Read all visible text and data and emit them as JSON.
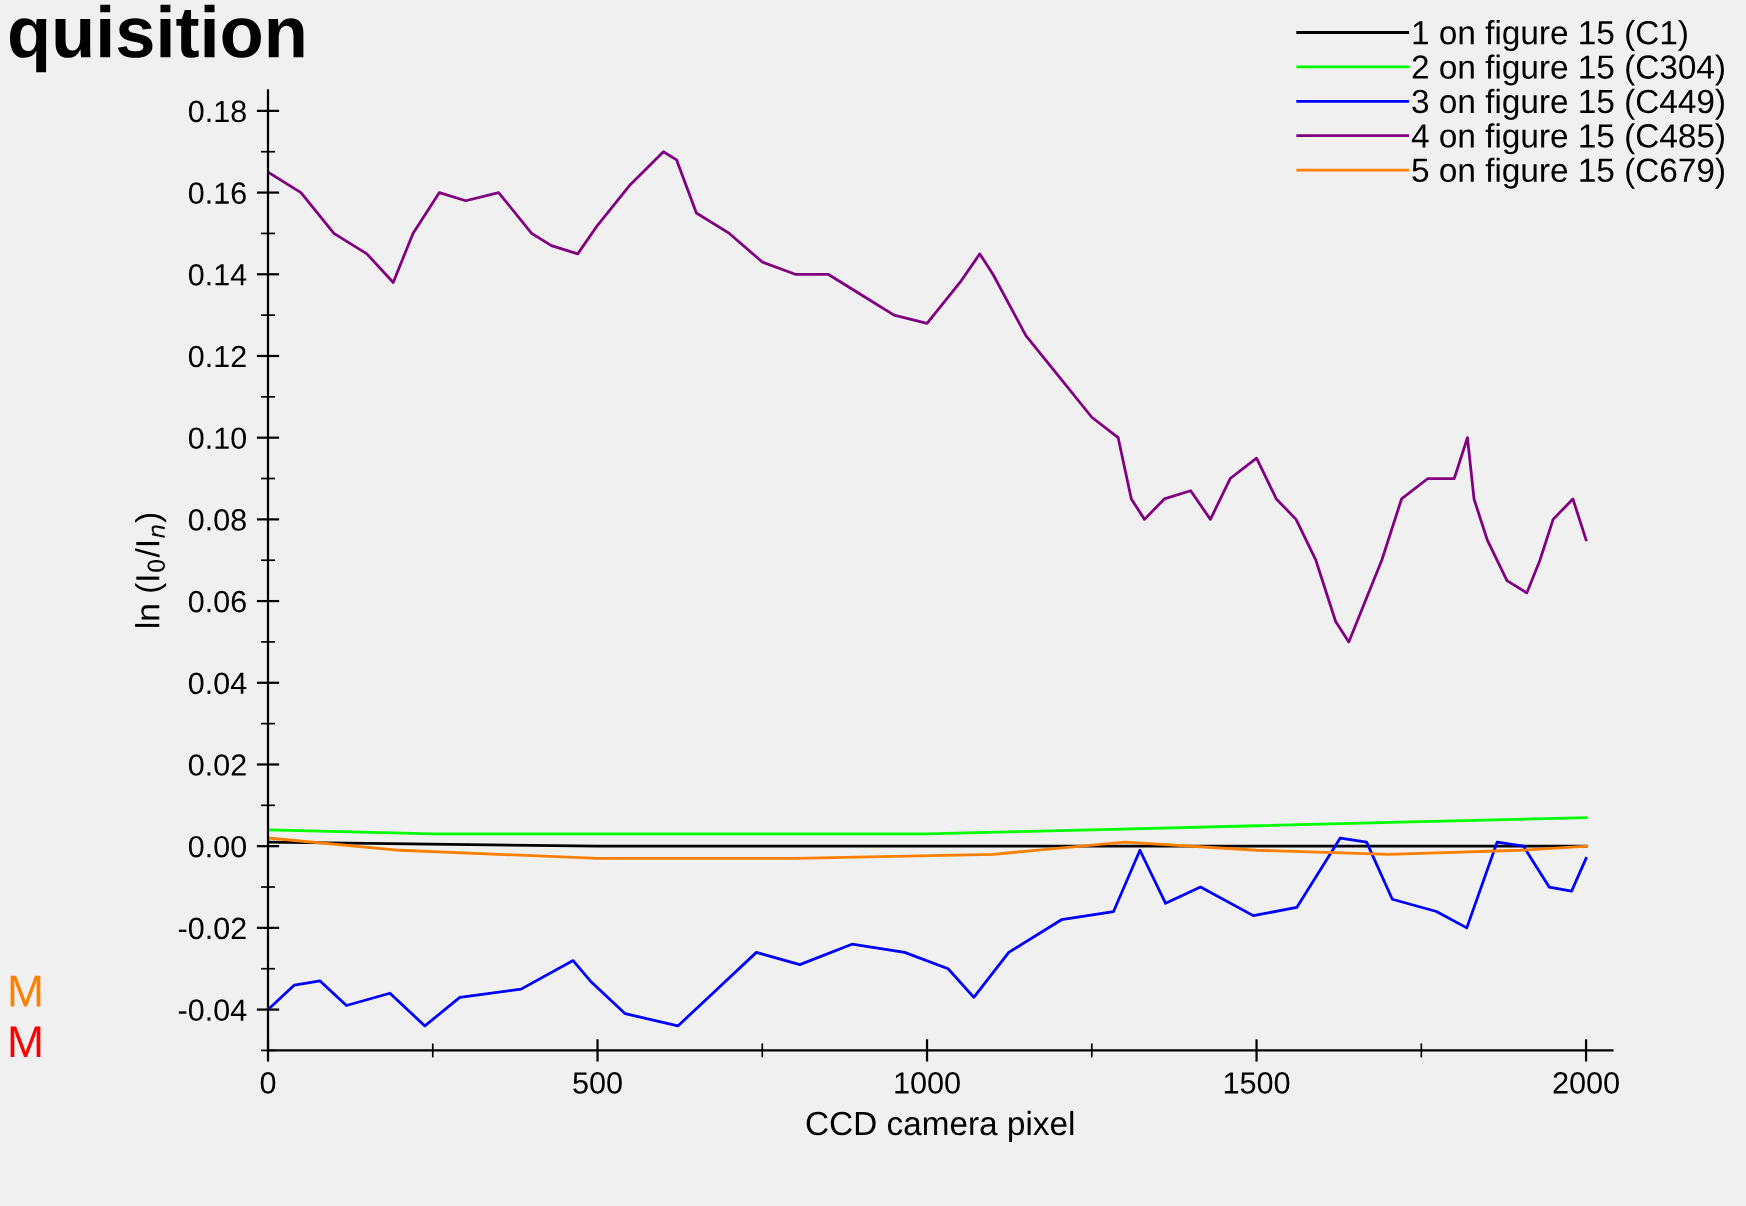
{
  "chart_data": {
    "type": "line",
    "xlabel": "CCD camera pixel",
    "ylabel": "ln (I$_{0}$/I$_{n}$)",
    "annotations": [
      "quisition",
      "M",
      "M"
    ],
    "xlim": [
      0,
      2040
    ],
    "xticks": [
      0,
      500,
      1000,
      1500,
      2000
    ],
    "ylim": [
      -0.05,
      0.185
    ],
    "yticks": [
      {
        "value": -0.04,
        "label": "-0.04"
      },
      {
        "value": -0.02,
        "label": "-0.02"
      },
      {
        "value": 0,
        "label": "0.00"
      },
      {
        "value": 0.02,
        "label": "0.02"
      },
      {
        "value": 0.04,
        "label": "0.04"
      },
      {
        "value": 0.06,
        "label": "0.06"
      },
      {
        "value": 0.08,
        "label": "0.08"
      },
      {
        "value": 0.1,
        "label": "0.10"
      },
      {
        "value": 0.12,
        "label": "0.12"
      },
      {
        "value": 0.14,
        "label": "0.14"
      },
      {
        "value": 0.16,
        "label": "0.16"
      },
      {
        "value": 0.18,
        "label": "0.18"
      }
    ],
    "grid": false,
    "legend": "top right",
    "line_style": "solid",
    "marker": "none",
    "series": [
      {
        "name": "1 on figure 15 (C1)",
        "color": "#000000",
        "x": [
          0,
          500,
          1000,
          1500,
          2000
        ],
        "values": [
          0.001,
          0.0,
          0.0,
          0.0,
          0.0
        ]
      },
      {
        "name": "2 on figure 15 (C304)",
        "color": "#00ff00",
        "x": [
          0,
          250,
          500,
          750,
          1000,
          1250,
          1500,
          1750,
          2000
        ],
        "values": [
          0.004,
          0.003,
          0.003,
          0.003,
          0.003,
          0.004,
          0.005,
          0.006,
          0.007
        ]
      },
      {
        "name": "3 on figure 15 (C449)",
        "color": "#0000ff",
        "x": [
          0,
          40,
          79,
          119,
          185,
          238,
          291,
          384,
          463,
          489,
          542,
          622,
          675,
          741,
          807,
          886,
          966,
          1032,
          1071,
          1124,
          1204,
          1283,
          1323,
          1362,
          1415,
          1495,
          1561,
          1627,
          1667,
          1706,
          1773,
          1819,
          1865,
          1905,
          1944,
          1978,
          2000
        ],
        "values": [
          -0.04,
          -0.034,
          -0.033,
          -0.039,
          -0.036,
          -0.044,
          -0.037,
          -0.035,
          -0.028,
          -0.033,
          -0.041,
          -0.044,
          -0.036,
          -0.026,
          -0.029,
          -0.024,
          -0.026,
          -0.03,
          -0.037,
          -0.026,
          -0.018,
          -0.016,
          -0.001,
          -0.014,
          -0.01,
          -0.017,
          -0.015,
          0.002,
          0.001,
          -0.013,
          -0.016,
          -0.02,
          0.001,
          0.0,
          -0.01,
          -0.011,
          -0.003
        ]
      },
      {
        "name": "4 on figure 15 (C485)",
        "color": "#800080",
        "x": [
          0,
          50,
          100,
          150,
          190,
          220,
          260,
          300,
          350,
          400,
          430,
          470,
          500,
          550,
          600,
          620,
          650,
          700,
          750,
          800,
          850,
          900,
          950,
          1000,
          1050,
          1080,
          1100,
          1150,
          1200,
          1250,
          1290,
          1310,
          1330,
          1360,
          1400,
          1430,
          1460,
          1500,
          1530,
          1560,
          1590,
          1620,
          1640,
          1660,
          1690,
          1720,
          1760,
          1800,
          1820,
          1830,
          1850,
          1880,
          1910,
          1930,
          1950,
          1980,
          2000
        ],
        "values": [
          0.165,
          0.16,
          0.15,
          0.145,
          0.138,
          0.15,
          0.16,
          0.158,
          0.16,
          0.15,
          0.147,
          0.145,
          0.152,
          0.162,
          0.17,
          0.168,
          0.155,
          0.15,
          0.143,
          0.14,
          0.14,
          0.135,
          0.13,
          0.128,
          0.138,
          0.145,
          0.14,
          0.125,
          0.115,
          0.105,
          0.1,
          0.085,
          0.08,
          0.085,
          0.087,
          0.08,
          0.09,
          0.095,
          0.085,
          0.08,
          0.07,
          0.055,
          0.05,
          0.058,
          0.07,
          0.085,
          0.09,
          0.09,
          0.1,
          0.085,
          0.075,
          0.065,
          0.062,
          0.07,
          0.08,
          0.085,
          0.075
        ]
      },
      {
        "name": "5 on figure 15 (C679)",
        "color": "#ff8000",
        "x": [
          0,
          200,
          500,
          800,
          1100,
          1300,
          1500,
          1700,
          1900,
          2000
        ],
        "values": [
          0.002,
          -0.001,
          -0.003,
          -0.003,
          -0.002,
          0.001,
          -0.001,
          -0.002,
          -0.001,
          0.0
        ]
      }
    ]
  }
}
